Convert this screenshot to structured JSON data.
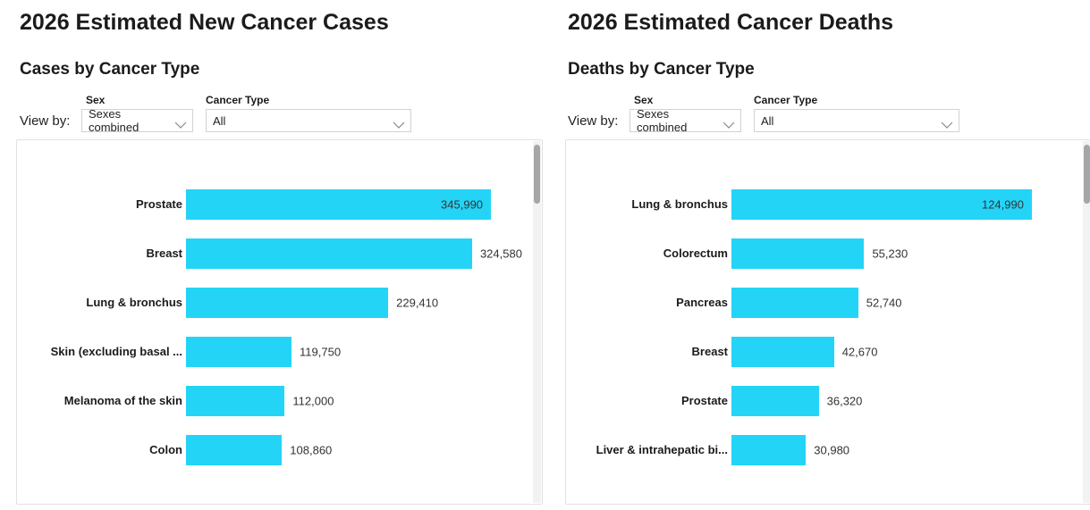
{
  "panels": [
    {
      "title": "2026 Estimated New Cancer Cases",
      "subtitle": "Cases by Cancer Type",
      "view_by_label": "View by:",
      "controls": {
        "sex_label": "Sex",
        "sex_value": "Sexes combined",
        "cancer_type_label": "Cancer Type",
        "cancer_type_value": "All"
      }
    },
    {
      "title": "2026 Estimated Cancer Deaths",
      "subtitle": "Deaths by Cancer Type",
      "view_by_label": "View by:",
      "controls": {
        "sex_label": "Sex",
        "sex_value": "Sexes combined",
        "cancer_type_label": "Cancer Type",
        "cancer_type_value": "All"
      }
    }
  ],
  "chart_data": [
    {
      "type": "bar",
      "orientation": "horizontal",
      "title": "Cases by Cancer Type",
      "categories": [
        "Prostate",
        "Breast",
        "Lung & bronchus",
        "Skin (excluding basal ...",
        "Melanoma of the skin",
        "Colon"
      ],
      "values": [
        345990,
        324580,
        229410,
        119750,
        112000,
        108860
      ],
      "value_labels": [
        "345,990",
        "324,580",
        "229,410",
        "119,750",
        "112,000",
        "108,860"
      ],
      "value_label_inside": [
        true,
        false,
        false,
        false,
        false,
        false
      ],
      "axis_max": 350000,
      "bar_color": "#24d4f7",
      "grid": "off",
      "legend": "none",
      "scrollable": true
    },
    {
      "type": "bar",
      "orientation": "horizontal",
      "title": "Deaths by Cancer Type",
      "categories": [
        "Lung & bronchus",
        "Colorectum",
        "Pancreas",
        "Breast",
        "Prostate",
        "Liver & intrahepatic bi..."
      ],
      "values": [
        124990,
        55230,
        52740,
        42670,
        36320,
        30980
      ],
      "value_labels": [
        "124,990",
        "55,230",
        "52,740",
        "42,670",
        "36,320",
        "30,980"
      ],
      "value_label_inside": [
        true,
        false,
        false,
        false,
        false,
        false
      ],
      "axis_max": 125000,
      "bar_color": "#24d4f7",
      "grid": "off",
      "legend": "none",
      "scrollable": true
    }
  ]
}
